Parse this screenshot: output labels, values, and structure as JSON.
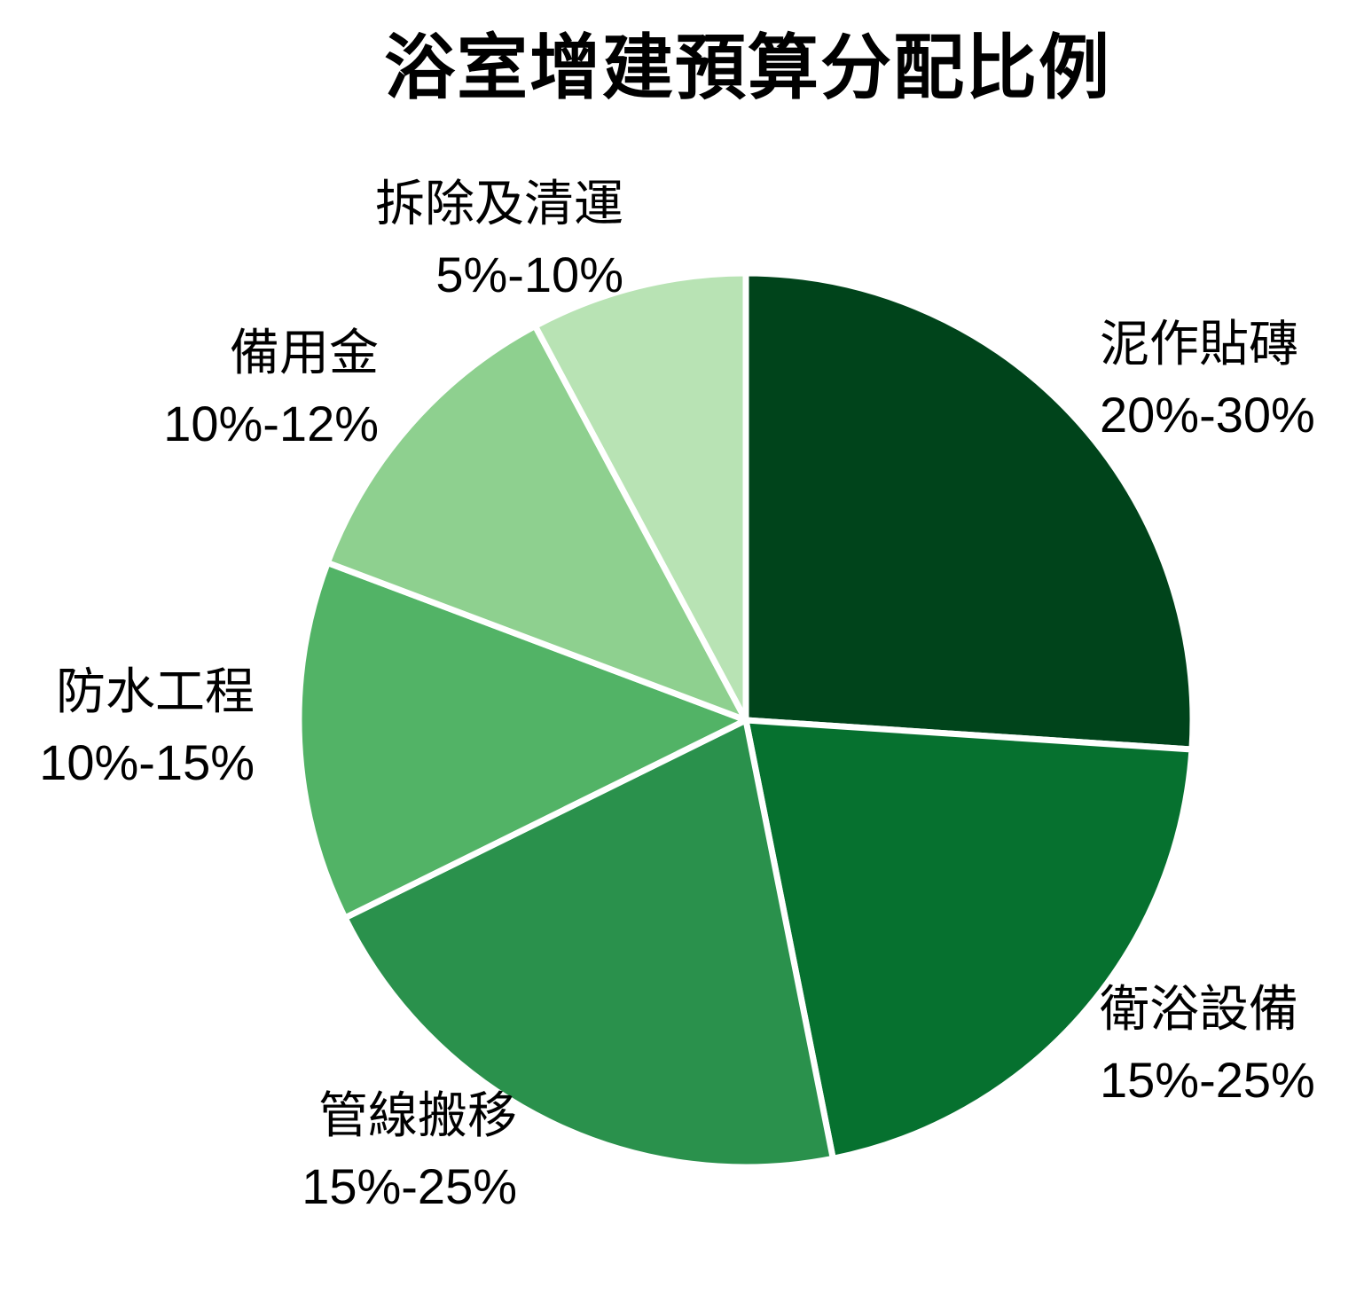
{
  "title": "浴室增建預算分配比例",
  "background": "#ffffff",
  "chart_data": {
    "type": "pie",
    "title": "浴室增建預算分配比例",
    "direction": "clockwise",
    "start_angle": "12-oclock",
    "legend": "none",
    "labels_position": "outside",
    "separator_color": "#ffffff",
    "slices": [
      {
        "id": "tiling",
        "label": "泥作貼磚",
        "range": "20%-30%",
        "value": 25,
        "color": "#00441b"
      },
      {
        "id": "fixtures",
        "label": "衛浴設備",
        "range": "15%-25%",
        "value": 20,
        "color": "#06712f"
      },
      {
        "id": "piping",
        "label": "管線搬移",
        "range": "15%-25%",
        "value": 20,
        "color": "#2a914c"
      },
      {
        "id": "waterproof",
        "label": "防水工程",
        "range": "10%-15%",
        "value": 12.5,
        "color": "#52b366"
      },
      {
        "id": "reserve",
        "label": "備用金",
        "range": "10%-12%",
        "value": 11,
        "color": "#8ed08f"
      },
      {
        "id": "demolition",
        "label": "拆除及清運",
        "range": "5%-10%",
        "value": 7.5,
        "color": "#b8e3b4"
      }
    ]
  }
}
